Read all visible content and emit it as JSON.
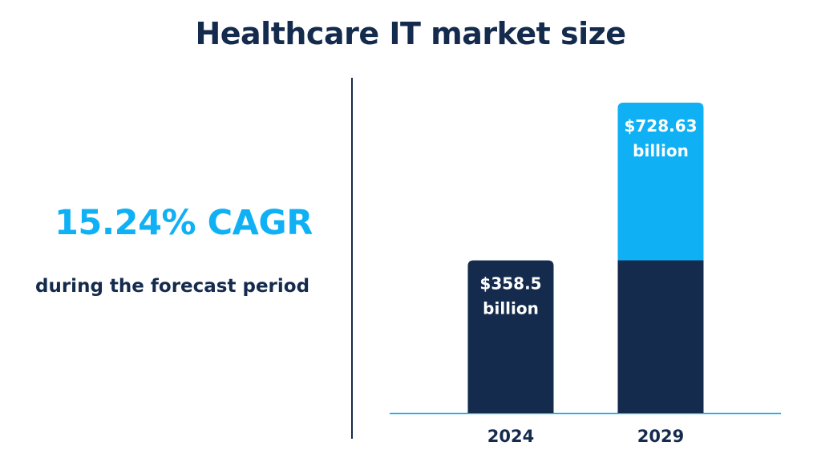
{
  "chart_data": {
    "type": "bar",
    "title": "Healthcare IT market size",
    "categories": [
      "2024",
      "2029"
    ],
    "values": [
      358.5,
      728.63
    ],
    "value_labels": [
      [
        "$358.5",
        "billion"
      ],
      [
        "$728.63",
        "billion"
      ]
    ],
    "xlabel": "",
    "ylabel": "",
    "grid": false,
    "colors": {
      "base": "#152b4d",
      "growth": "#10b0f5",
      "axis": "#10b0f5"
    }
  },
  "highlight": {
    "cagr": "15.24% CAGR",
    "caption": "during the forecast period"
  }
}
